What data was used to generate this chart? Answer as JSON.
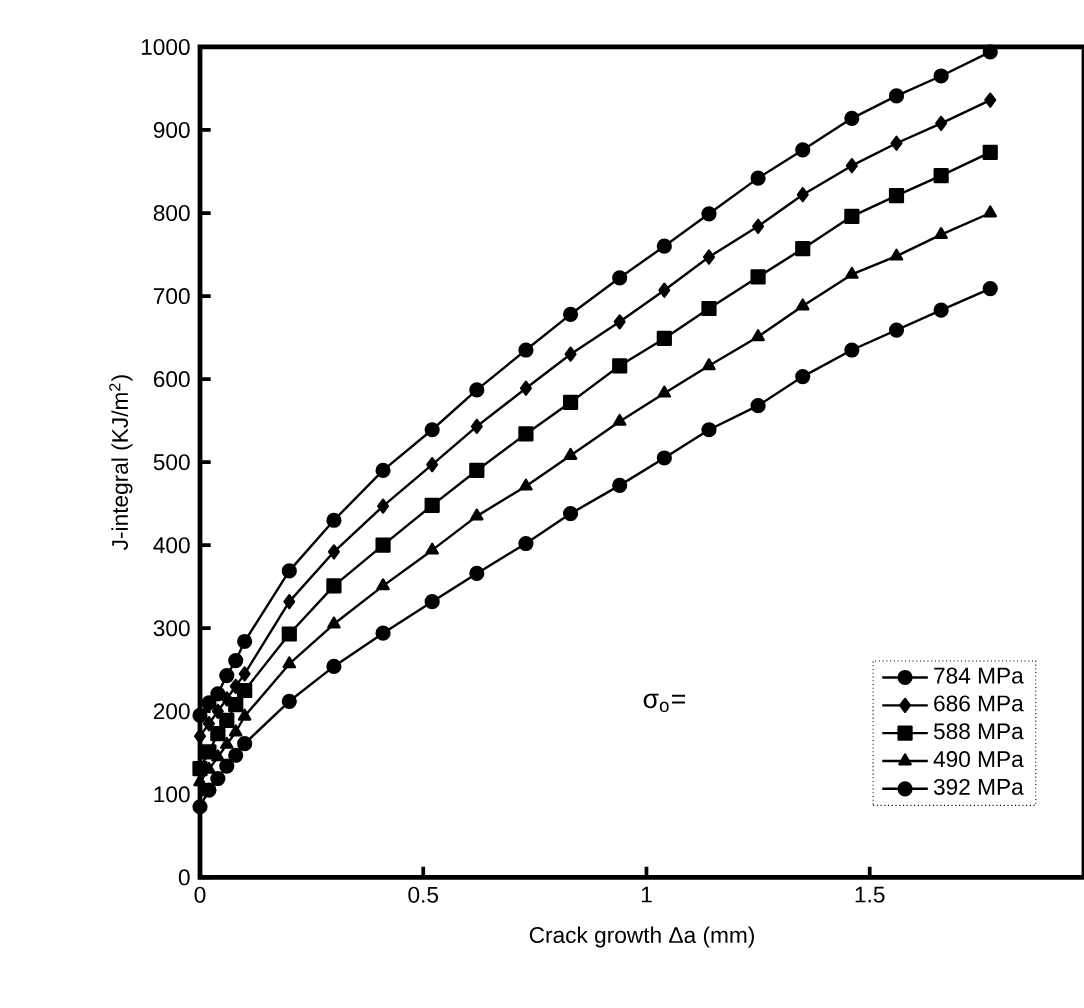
{
  "chart_data": {
    "type": "line",
    "xlabel": "Crack growth Δa (mm)",
    "ylabel": "J-integral (KJ/m$^{2}$)",
    "x": [
      0,
      0.02,
      0.04,
      0.06,
      0.08,
      0.1,
      0.2,
      0.3,
      0.41,
      0.52,
      0.62,
      0.73,
      0.83,
      0.94,
      1.04,
      1.14,
      1.25,
      1.35,
      1.46,
      1.56,
      1.66,
      1.77
    ],
    "series": [
      {
        "name": "784 MPa",
        "color": "#000000",
        "marker": "circle",
        "values": [
          195,
          210,
          221,
          243,
          261,
          284,
          369,
          430,
          490,
          539,
          587,
          635,
          678,
          722,
          760,
          799,
          842,
          876,
          914,
          941,
          965,
          994
        ]
      },
      {
        "name": "686 MPa",
        "color": "#000000",
        "marker": "diamond",
        "values": [
          170,
          185,
          200,
          215,
          230,
          245,
          332,
          392,
          447,
          497,
          543,
          589,
          630,
          669,
          707,
          747,
          784,
          822,
          857,
          884,
          908,
          936
        ]
      },
      {
        "name": "588 MPa",
        "color": "#000000",
        "marker": "square",
        "values": [
          131,
          151,
          173,
          189,
          208,
          225,
          293,
          351,
          400,
          448,
          490,
          534,
          572,
          616,
          649,
          685,
          723,
          757,
          796,
          821,
          845,
          873
        ]
      },
      {
        "name": "490 MPa",
        "color": "#000000",
        "marker": "triangle",
        "values": [
          115,
          130,
          145,
          160,
          175,
          194,
          257,
          305,
          351,
          394,
          435,
          471,
          508,
          549,
          583,
          616,
          651,
          688,
          726,
          748,
          774,
          800
        ]
      },
      {
        "name": "392 MPa",
        "color": "#000000",
        "marker": "circle",
        "values": [
          85,
          105,
          119,
          134,
          147,
          161,
          212,
          254,
          294,
          332,
          366,
          402,
          438,
          472,
          505,
          539,
          568,
          603,
          635,
          659,
          683,
          709
        ]
      }
    ],
    "annotations": [
      "σ$_{o}$="
    ],
    "xlim": [
      0,
      1.98
    ],
    "ylim": [
      0,
      1000
    ],
    "xticks": [
      0,
      0.5,
      1,
      1.5
    ],
    "yticks": [
      0,
      100,
      200,
      300,
      400,
      500,
      600,
      700,
      800,
      900,
      1000
    ],
    "legend": "bottom right",
    "grid": false,
    "line_style": "solid"
  }
}
